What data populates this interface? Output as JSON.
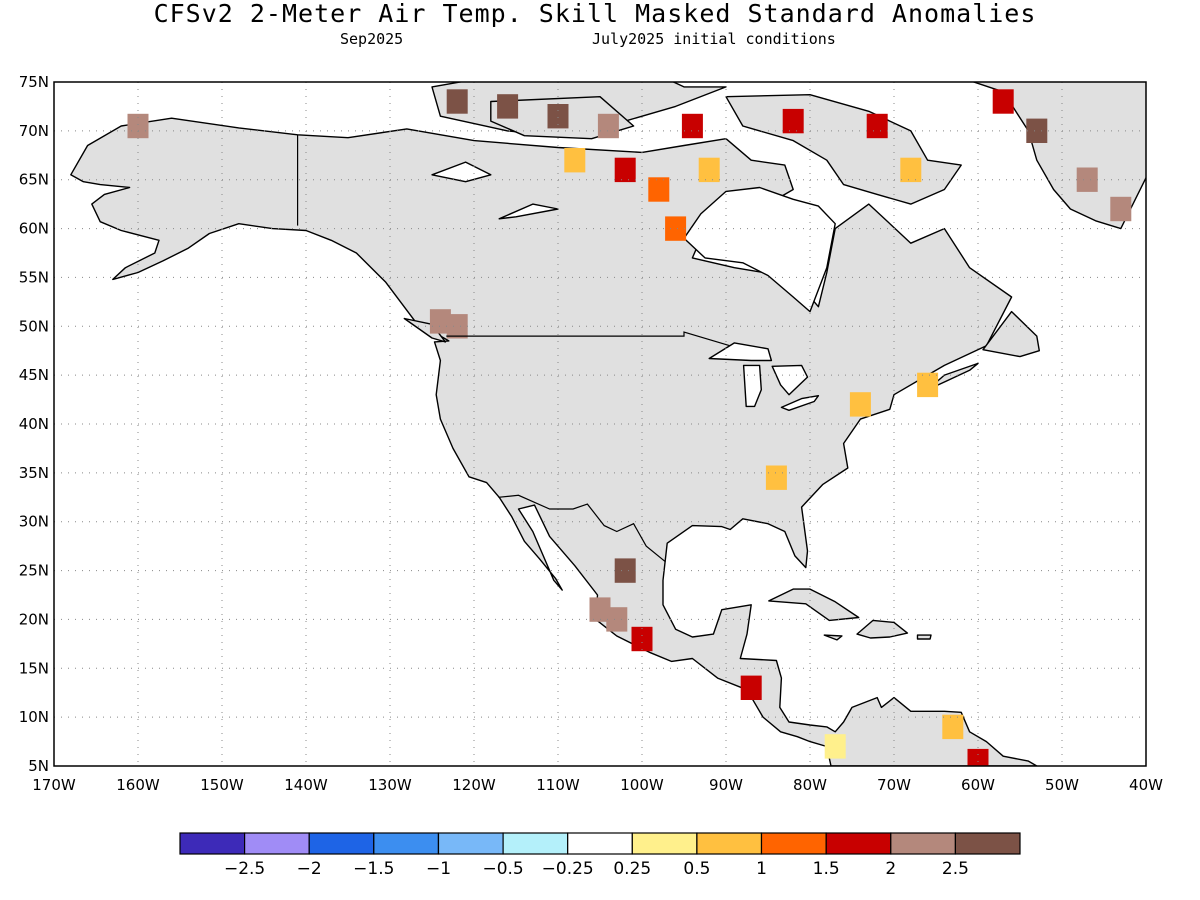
{
  "title": "CFSv2 2-Meter Air Temp. Skill Masked Standard Anomalies",
  "subtitle_left": "Sep2025",
  "subtitle_right": "July2025 initial conditions",
  "map": {
    "lon_range": [
      -170,
      -40
    ],
    "lat_range": [
      5,
      75
    ],
    "lat_labels": [
      "75N",
      "70N",
      "65N",
      "60N",
      "55N",
      "50N",
      "45N",
      "40N",
      "35N",
      "30N",
      "25N",
      "20N",
      "15N",
      "10N",
      "5N"
    ],
    "lon_labels": [
      "170W",
      "160W",
      "150W",
      "140W",
      "130W",
      "120W",
      "110W",
      "100W",
      "90W",
      "80W",
      "70W",
      "60W",
      "50W",
      "40W"
    ],
    "land_fill": "#e0e0e0",
    "ocean_fill": "#ffffff",
    "gridlines": "dotted"
  },
  "colorbar": {
    "colors": [
      "#3d2ab8",
      "#a08cf6",
      "#1e64e6",
      "#3c8ef0",
      "#78b8f8",
      "#b4f0fa",
      "#ffffff",
      "#fff08c",
      "#ffc040",
      "#ff6400",
      "#c80000",
      "#b4887c",
      "#7c5246"
    ],
    "labels": [
      "-2.5",
      "-2",
      "-1.5",
      "-1",
      "-0.5",
      "-0.25",
      "0.25",
      "0.5",
      "1",
      "1.5",
      "2",
      "2.5"
    ]
  },
  "anomalies": [
    {
      "lat": 70.5,
      "lon": -160,
      "value": 2.2
    },
    {
      "lat": 73,
      "lon": -122,
      "value": 2.8
    },
    {
      "lat": 72.5,
      "lon": -116,
      "value": 2.8
    },
    {
      "lat": 71.5,
      "lon": -110,
      "value": 2.8
    },
    {
      "lat": 70.5,
      "lon": -104,
      "value": 2.2
    },
    {
      "lat": 70.5,
      "lon": -94,
      "value": 1.5
    },
    {
      "lat": 67,
      "lon": -108,
      "value": 0.7
    },
    {
      "lat": 66,
      "lon": -102,
      "value": 1.6
    },
    {
      "lat": 64,
      "lon": -98,
      "value": 1.2
    },
    {
      "lat": 66,
      "lon": -92,
      "value": 0.7
    },
    {
      "lat": 60,
      "lon": -96,
      "value": 1.2
    },
    {
      "lat": 71,
      "lon": -82,
      "value": 1.6
    },
    {
      "lat": 70.5,
      "lon": -72,
      "value": 1.6
    },
    {
      "lat": 66,
      "lon": -68,
      "value": 0.7
    },
    {
      "lat": 73,
      "lon": -57,
      "value": 1.6
    },
    {
      "lat": 70,
      "lon": -53,
      "value": 2.6
    },
    {
      "lat": 65,
      "lon": -47,
      "value": 2.4
    },
    {
      "lat": 62,
      "lon": -43,
      "value": 2.2
    },
    {
      "lat": 50.5,
      "lon": -124,
      "value": 2.2
    },
    {
      "lat": 50,
      "lon": -122,
      "value": 2.2
    },
    {
      "lat": 44,
      "lon": -66,
      "value": 0.7
    },
    {
      "lat": 42,
      "lon": -74,
      "value": 0.5
    },
    {
      "lat": 34.5,
      "lon": -84,
      "value": 0.6
    },
    {
      "lat": 25,
      "lon": -102,
      "value": 2.8
    },
    {
      "lat": 21,
      "lon": -105,
      "value": 2.2
    },
    {
      "lat": 20,
      "lon": -103,
      "value": 2.2
    },
    {
      "lat": 18,
      "lon": -100,
      "value": 1.6
    },
    {
      "lat": 13,
      "lon": -87,
      "value": 1.6
    },
    {
      "lat": 7,
      "lon": -77,
      "value": 0.4
    },
    {
      "lat": 9,
      "lon": -63,
      "value": 0.5
    },
    {
      "lat": 5.5,
      "lon": -60,
      "value": 1.6
    }
  ]
}
